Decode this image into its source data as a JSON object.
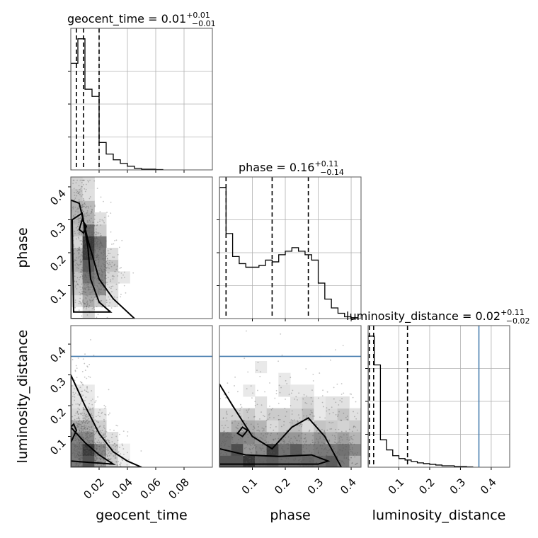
{
  "chart_data": {
    "type": "corner",
    "parameters": [
      "geocent_time",
      "phase",
      "luminosity_distance"
    ],
    "truth_color": "#4a7fb0",
    "titles": [
      {
        "param": "geocent_time",
        "median": "0.01",
        "plus": "+0.01",
        "minus": "−0.01"
      },
      {
        "param": "phase",
        "median": "0.16",
        "plus": "+0.11",
        "minus": "−0.14"
      },
      {
        "param": "luminosity_distance",
        "median": "0.02",
        "plus": "+0.11",
        "minus": "−0.02"
      }
    ],
    "ranges": {
      "geocent_time": [
        0.0,
        0.1
      ],
      "phase": [
        0.0,
        0.43
      ],
      "luminosity_distance": [
        0.0,
        0.46
      ]
    },
    "ticks": {
      "geocent_time": {
        "values": [
          0.02,
          0.04,
          0.06,
          0.08
        ],
        "labels": [
          "0.02",
          "0.04",
          "0.06",
          "0.08"
        ]
      },
      "phase": {
        "values": [
          0.1,
          0.2,
          0.3,
          0.4
        ],
        "labels": [
          "0.1",
          "0.2",
          "0.3",
          "0.4"
        ]
      },
      "luminosity_distance": {
        "values": [
          0.1,
          0.2,
          0.3,
          0.4
        ],
        "labels": [
          "0.1",
          "0.2",
          "0.3",
          "0.4"
        ]
      }
    },
    "quantiles": {
      "geocent_time": [
        0.004,
        0.009,
        0.02
      ],
      "phase": [
        0.02,
        0.16,
        0.27
      ],
      "luminosity_distance": [
        0.004,
        0.018,
        0.128
      ]
    },
    "truths": {
      "luminosity_distance": 0.36
    },
    "histograms": {
      "geocent_time": {
        "bin_edges": [
          0.0,
          0.005,
          0.01,
          0.015,
          0.02,
          0.025,
          0.03,
          0.035,
          0.04,
          0.045,
          0.05,
          0.055,
          0.06,
          0.065
        ],
        "counts": [
          148,
          182,
          112,
          102,
          38,
          22,
          14,
          9,
          5,
          2,
          1,
          1,
          0.5
        ]
      },
      "phase": {
        "bin_edges": [
          0.0,
          0.02,
          0.04,
          0.06,
          0.08,
          0.1,
          0.12,
          0.14,
          0.16,
          0.18,
          0.2,
          0.22,
          0.24,
          0.26,
          0.28,
          0.3,
          0.32,
          0.34,
          0.36,
          0.38,
          0.4,
          0.42
        ],
        "counts": [
          148,
          96,
          70,
          62,
          58,
          58,
          60,
          66,
          64,
          72,
          76,
          80,
          76,
          72,
          66,
          40,
          22,
          12,
          6,
          2,
          1
        ]
      },
      "luminosity_distance": {
        "bin_edges": [
          0.0,
          0.02,
          0.04,
          0.06,
          0.08,
          0.1,
          0.12,
          0.14,
          0.16,
          0.18,
          0.2,
          0.22,
          0.24,
          0.26,
          0.28,
          0.3,
          0.32,
          0.34
        ],
        "counts": [
          182,
          142,
          38,
          24,
          16,
          12,
          10,
          8,
          6,
          5,
          4,
          3,
          2,
          2,
          1,
          1,
          0.5
        ]
      }
    }
  }
}
